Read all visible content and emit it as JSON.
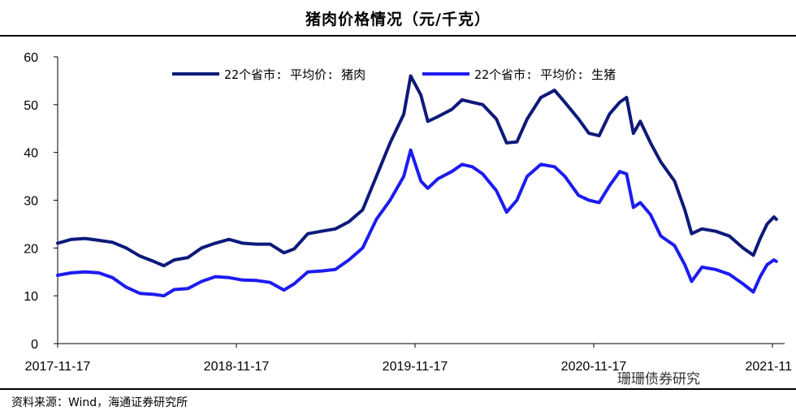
{
  "header": {
    "title": "猪肉价格情况（元/千克）"
  },
  "footer": {
    "source": "资料来源：Wind，海通证券研究所",
    "watermark": "珊珊债券研究"
  },
  "colors": {
    "pork": "#0D1A7A",
    "hog": "#1C1CF0",
    "axis": "#000000"
  },
  "chart_data": {
    "type": "line",
    "title": "猪肉价格情况（元/千克）",
    "xlabel": "",
    "ylabel": "",
    "ylim": [
      0,
      60
    ],
    "yticks": [
      0,
      10,
      20,
      30,
      40,
      50,
      60
    ],
    "x_tick_labels": [
      "2017-11-17",
      "2018-11-17",
      "2019-11-17",
      "2020-11-17",
      "2021-11"
    ],
    "x_range": [
      "2017-11-17",
      "2021-11-24"
    ],
    "grid": false,
    "legend": "top",
    "series": [
      {
        "name": "22个省市: 平均价: 猪肉",
        "color": "#0D1A7A",
        "points": [
          [
            "2017-11-17",
            21.0
          ],
          [
            "2017-12-15",
            21.8
          ],
          [
            "2018-01-12",
            22.0
          ],
          [
            "2018-02-09",
            21.6
          ],
          [
            "2018-03-09",
            21.2
          ],
          [
            "2018-04-06",
            20.0
          ],
          [
            "2018-05-04",
            18.3
          ],
          [
            "2018-06-01",
            17.2
          ],
          [
            "2018-06-22",
            16.3
          ],
          [
            "2018-07-13",
            17.5
          ],
          [
            "2018-08-10",
            18.0
          ],
          [
            "2018-09-07",
            20.0
          ],
          [
            "2018-10-05",
            21.0
          ],
          [
            "2018-11-02",
            21.8
          ],
          [
            "2018-11-30",
            21.0
          ],
          [
            "2018-12-28",
            20.8
          ],
          [
            "2019-01-25",
            20.8
          ],
          [
            "2019-02-22",
            19.0
          ],
          [
            "2019-03-15",
            19.8
          ],
          [
            "2019-04-12",
            23.0
          ],
          [
            "2019-05-10",
            23.5
          ],
          [
            "2019-06-07",
            24.0
          ],
          [
            "2019-07-05",
            25.5
          ],
          [
            "2019-08-02",
            28.0
          ],
          [
            "2019-08-30",
            35.0
          ],
          [
            "2019-09-27",
            42.0
          ],
          [
            "2019-10-25",
            48.0
          ],
          [
            "2019-11-08",
            56.0
          ],
          [
            "2019-11-29",
            52.0
          ],
          [
            "2019-12-13",
            46.5
          ],
          [
            "2020-01-03",
            47.5
          ],
          [
            "2020-01-31",
            49.0
          ],
          [
            "2020-02-21",
            51.0
          ],
          [
            "2020-03-13",
            50.5
          ],
          [
            "2020-04-03",
            50.0
          ],
          [
            "2020-05-01",
            47.0
          ],
          [
            "2020-05-22",
            42.0
          ],
          [
            "2020-06-12",
            42.2
          ],
          [
            "2020-07-03",
            47.0
          ],
          [
            "2020-07-31",
            51.5
          ],
          [
            "2020-08-28",
            53.0
          ],
          [
            "2020-09-18",
            50.5
          ],
          [
            "2020-10-16",
            47.0
          ],
          [
            "2020-11-06",
            44.0
          ],
          [
            "2020-11-27",
            43.5
          ],
          [
            "2020-12-18",
            48.0
          ],
          [
            "2021-01-08",
            50.5
          ],
          [
            "2021-01-22",
            51.5
          ],
          [
            "2021-02-05",
            44.0
          ],
          [
            "2021-02-19",
            46.5
          ],
          [
            "2021-03-12",
            42.0
          ],
          [
            "2021-04-02",
            38.0
          ],
          [
            "2021-04-30",
            34.0
          ],
          [
            "2021-05-21",
            28.0
          ],
          [
            "2021-06-04",
            23.0
          ],
          [
            "2021-06-25",
            24.0
          ],
          [
            "2021-07-23",
            23.5
          ],
          [
            "2021-08-20",
            22.5
          ],
          [
            "2021-09-17",
            20.0
          ],
          [
            "2021-10-08",
            18.5
          ],
          [
            "2021-10-22",
            22.0
          ],
          [
            "2021-11-05",
            25.0
          ],
          [
            "2021-11-19",
            26.5
          ],
          [
            "2021-11-24",
            26.0
          ]
        ]
      },
      {
        "name": "22个省市: 平均价: 生猪",
        "color": "#1C1CF0",
        "points": [
          [
            "2017-11-17",
            14.3
          ],
          [
            "2017-12-15",
            14.8
          ],
          [
            "2018-01-12",
            15.0
          ],
          [
            "2018-02-09",
            14.8
          ],
          [
            "2018-03-09",
            13.8
          ],
          [
            "2018-04-06",
            11.8
          ],
          [
            "2018-05-04",
            10.5
          ],
          [
            "2018-06-01",
            10.3
          ],
          [
            "2018-06-22",
            10.0
          ],
          [
            "2018-07-13",
            11.3
          ],
          [
            "2018-08-10",
            11.5
          ],
          [
            "2018-09-07",
            13.0
          ],
          [
            "2018-10-05",
            14.0
          ],
          [
            "2018-11-02",
            13.8
          ],
          [
            "2018-11-30",
            13.3
          ],
          [
            "2018-12-28",
            13.2
          ],
          [
            "2019-01-25",
            12.8
          ],
          [
            "2019-02-22",
            11.2
          ],
          [
            "2019-03-15",
            12.5
          ],
          [
            "2019-04-12",
            15.0
          ],
          [
            "2019-05-10",
            15.2
          ],
          [
            "2019-06-07",
            15.5
          ],
          [
            "2019-07-05",
            17.5
          ],
          [
            "2019-08-02",
            20.0
          ],
          [
            "2019-08-30",
            26.0
          ],
          [
            "2019-09-27",
            30.0
          ],
          [
            "2019-10-25",
            35.0
          ],
          [
            "2019-11-08",
            40.5
          ],
          [
            "2019-11-29",
            34.0
          ],
          [
            "2019-12-13",
            32.5
          ],
          [
            "2020-01-03",
            34.5
          ],
          [
            "2020-01-31",
            36.0
          ],
          [
            "2020-02-21",
            37.5
          ],
          [
            "2020-03-13",
            37.0
          ],
          [
            "2020-04-03",
            35.5
          ],
          [
            "2020-05-01",
            32.0
          ],
          [
            "2020-05-22",
            27.5
          ],
          [
            "2020-06-12",
            30.0
          ],
          [
            "2020-07-03",
            35.0
          ],
          [
            "2020-07-31",
            37.5
          ],
          [
            "2020-08-28",
            37.0
          ],
          [
            "2020-09-18",
            35.0
          ],
          [
            "2020-10-16",
            31.0
          ],
          [
            "2020-11-06",
            30.0
          ],
          [
            "2020-11-27",
            29.5
          ],
          [
            "2020-12-18",
            33.0
          ],
          [
            "2021-01-08",
            36.0
          ],
          [
            "2021-01-22",
            35.5
          ],
          [
            "2021-02-05",
            28.5
          ],
          [
            "2021-02-19",
            29.5
          ],
          [
            "2021-03-12",
            27.0
          ],
          [
            "2021-04-02",
            22.5
          ],
          [
            "2021-04-30",
            20.5
          ],
          [
            "2021-05-21",
            16.5
          ],
          [
            "2021-06-04",
            13.0
          ],
          [
            "2021-06-25",
            16.0
          ],
          [
            "2021-07-23",
            15.5
          ],
          [
            "2021-08-20",
            14.5
          ],
          [
            "2021-09-17",
            12.5
          ],
          [
            "2021-10-08",
            10.8
          ],
          [
            "2021-10-22",
            14.0
          ],
          [
            "2021-11-05",
            16.5
          ],
          [
            "2021-11-19",
            17.5
          ],
          [
            "2021-11-24",
            17.2
          ]
        ]
      }
    ]
  }
}
